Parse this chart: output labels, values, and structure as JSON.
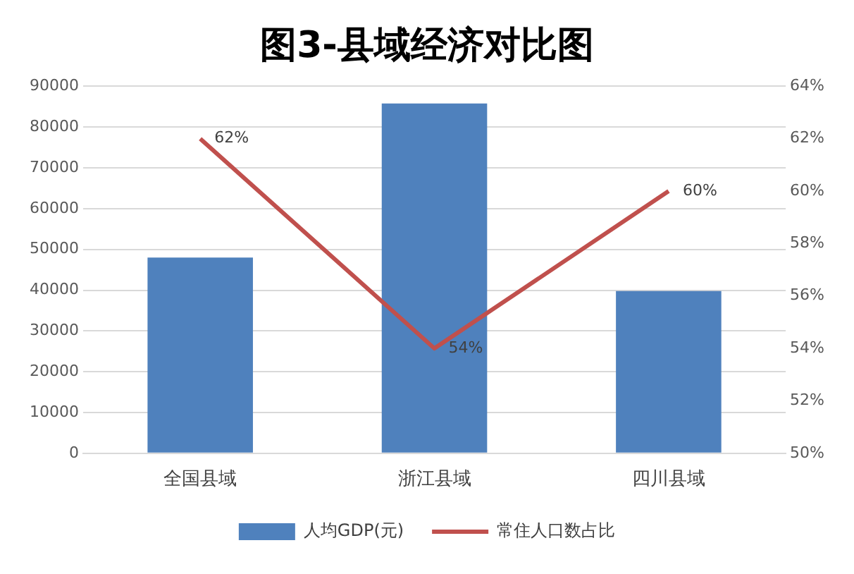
{
  "chart_data": {
    "type": "bar",
    "title": "图3-县域经济对比图",
    "categories": [
      "全国县域",
      "浙江县域",
      "四川县域"
    ],
    "series": [
      {
        "name": "人均GDP(元)",
        "color": "#4f81bd",
        "values": [
          48000,
          85800,
          39800
        ]
      },
      {
        "name": "常住人口数占比",
        "type": "line",
        "axis": "y2",
        "color": "#c0504d",
        "values": [
          62,
          54,
          60
        ],
        "value_labels": [
          "62%",
          "54%",
          "60%"
        ],
        "marker": "none"
      }
    ],
    "ylim": [
      0,
      90000
    ],
    "yticks": [
      0,
      10000,
      20000,
      30000,
      40000,
      50000,
      60000,
      70000,
      80000,
      90000
    ],
    "y2lim": [
      50,
      64
    ],
    "y2ticks": [
      {
        "value": 50,
        "label": "50%"
      },
      {
        "value": 52,
        "label": "52%"
      },
      {
        "value": 54,
        "label": "54%"
      },
      {
        "value": 56,
        "label": "56%"
      },
      {
        "value": 58,
        "label": "58%"
      },
      {
        "value": 60,
        "label": "60%"
      },
      {
        "value": 62,
        "label": "62%"
      },
      {
        "value": 64,
        "label": "64%"
      }
    ],
    "grid": "y",
    "legend": "bottom"
  }
}
